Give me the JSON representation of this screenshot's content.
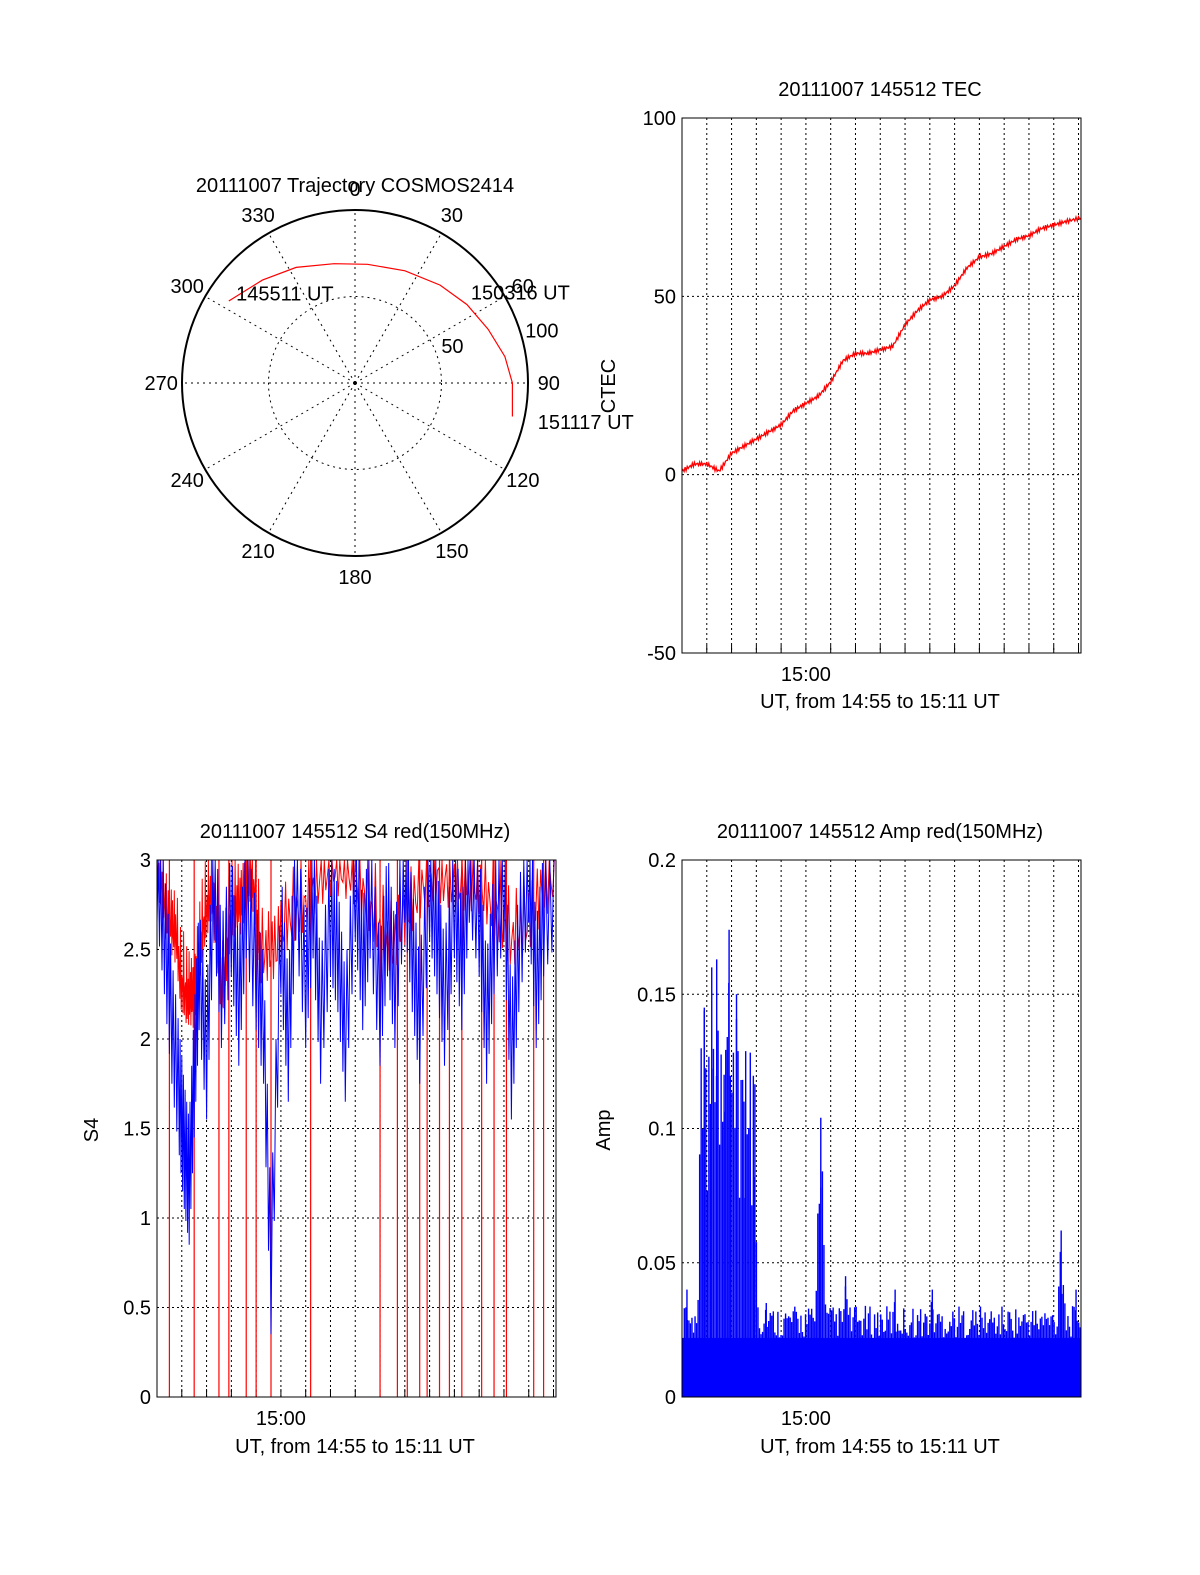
{
  "chart_data": [
    {
      "type": "polar",
      "title": "20111007 Trajectory COSMOS2414",
      "azimuth_labels": [
        "0",
        "30",
        "60",
        "90",
        "120",
        "150",
        "180",
        "210",
        "240",
        "270",
        "300",
        "330"
      ],
      "azimuth_values": [
        0,
        30,
        60,
        90,
        120,
        150,
        180,
        210,
        240,
        270,
        300,
        330
      ],
      "radial_labels": [
        "50",
        "100"
      ],
      "radial_values": [
        50,
        100
      ],
      "rlim": [
        0,
        100
      ],
      "series": [
        {
          "color": "#ff0000",
          "points": [
            {
              "az": 303,
              "r": 87
            },
            {
              "az": 318,
              "r": 80
            },
            {
              "az": 333,
              "r": 75
            },
            {
              "az": 350,
              "r": 70
            },
            {
              "az": 6,
              "r": 69
            },
            {
              "az": 24,
              "r": 71
            },
            {
              "az": 41,
              "r": 75
            },
            {
              "az": 55,
              "r": 79
            },
            {
              "az": 68,
              "r": 83
            },
            {
              "az": 80,
              "r": 88
            },
            {
              "az": 90,
              "r": 91
            },
            {
              "az": 102,
              "r": 93
            }
          ]
        }
      ],
      "annotations": [
        {
          "text": "145511 UT",
          "az": 307,
          "r": 86
        },
        {
          "text": "150316 UT",
          "az": 52,
          "r": 85
        },
        {
          "text": "151117 UT",
          "az": 102,
          "r": 108
        }
      ]
    },
    {
      "type": "line",
      "title": "20111007 145512 TEC",
      "xlabel": "UT, from 14:55 to 15:11 UT",
      "ylabel": "CTEC",
      "xlim": [
        0,
        16.1
      ],
      "ylim": [
        -50,
        100
      ],
      "yticks": [
        -50,
        0,
        50,
        100
      ],
      "xticks": [
        {
          "value": 5,
          "label": "15:00"
        }
      ],
      "grid": true,
      "series": [
        {
          "color": "#ff0000",
          "x": [
            0,
            0.5,
            1.0,
            1.5,
            2.0,
            2.5,
            3.0,
            3.5,
            4.0,
            4.5,
            5.0,
            5.5,
            6.0,
            6.5,
            7.0,
            7.5,
            8.0,
            8.5,
            9.0,
            9.5,
            10.0,
            10.5,
            11.0,
            11.5,
            12.0,
            12.5,
            13.0,
            13.5,
            14.0,
            14.5,
            15.0,
            15.5,
            16.1
          ],
          "y": [
            1,
            3,
            3,
            1,
            6,
            8,
            10,
            12,
            14,
            18,
            20,
            22,
            26,
            32,
            34,
            34,
            35,
            36,
            42,
            46,
            49,
            50,
            53,
            58,
            61,
            62,
            64,
            66,
            67,
            69,
            70,
            71,
            72
          ]
        }
      ]
    },
    {
      "type": "line",
      "title": "20111007 145512 S4 red(150MHz)",
      "xlabel": "UT, from 14:55 to 15:11 UT",
      "ylabel": "S4",
      "xlim": [
        0,
        16.1
      ],
      "ylim": [
        0,
        3
      ],
      "yticks": [
        0,
        0.5,
        1,
        1.5,
        2,
        2.5,
        3
      ],
      "xticks": [
        {
          "value": 5,
          "label": "15:00"
        }
      ],
      "grid": true,
      "series": [
        {
          "color": "#0000ff",
          "x": [
            0,
            0.3,
            0.6,
            0.9,
            1.1,
            1.3,
            1.5,
            1.7,
            2.0,
            2.3,
            2.6,
            3.0,
            3.3,
            3.6,
            4.0,
            4.3,
            4.6,
            5.0,
            5.3,
            5.6,
            6.0,
            6.3,
            6.6,
            7.0,
            7.3,
            7.6,
            8.0,
            8.3,
            8.6,
            9.0,
            9.3,
            9.6,
            10.0,
            10.3,
            10.6,
            11.0,
            11.3,
            11.6,
            12.0,
            12.3,
            12.6,
            13.0,
            13.3,
            13.6,
            14.0,
            14.3,
            14.6,
            15.0,
            15.3,
            15.6,
            16.1
          ],
          "y": [
            2.9,
            2.5,
            2.0,
            1.6,
            1.3,
            1.1,
            1.7,
            2.3,
            1.8,
            2.8,
            2.2,
            2.6,
            2.1,
            2.7,
            2.3,
            2.0,
            0.6,
            2.5,
            1.9,
            2.8,
            2.2,
            2.7,
            2.0,
            2.6,
            2.4,
            1.9,
            2.8,
            2.3,
            2.7,
            2.1,
            2.6,
            2.2,
            2.9,
            2.4,
            2.0,
            2.8,
            2.5,
            2.1,
            2.7,
            2.3,
            2.9,
            2.6,
            2.0,
            2.5,
            2.8,
            1.8,
            2.4,
            2.9,
            2.2,
            2.6,
            2.8
          ]
        },
        {
          "color": "#ff0000",
          "spikes_down": [
            0.5,
            1.5,
            2.5,
            2.9,
            3.6,
            4.0,
            4.6,
            6.2,
            9.0,
            9.7,
            10.1,
            10.6,
            10.9,
            11.4,
            11.8,
            12.3,
            13.1,
            13.6,
            14.1,
            15.2,
            15.6
          ],
          "x": [
            0,
            0.4,
            0.8,
            1.2,
            1.5,
            1.8,
            2.2,
            2.6,
            3.0,
            3.4,
            3.8,
            4.2,
            5.0,
            6.0,
            7.0,
            8.0,
            9.0,
            10.0,
            11.0,
            12.0,
            13.0,
            14.0,
            15.0,
            16.1
          ],
          "y": [
            2.9,
            2.7,
            2.8,
            2.4,
            2.2,
            2.5,
            2.9,
            2.6,
            2.8,
            2.7,
            2.9,
            2.6,
            2.9,
            2.8,
            2.9,
            2.9,
            2.8,
            2.9,
            2.9,
            2.8,
            2.9,
            2.9,
            2.8,
            2.9
          ]
        }
      ]
    },
    {
      "type": "bar",
      "title": "20111007 145512 Amp red(150MHz)",
      "xlabel": "UT, from 14:55 to 15:11 UT",
      "ylabel": "Amp",
      "xlim": [
        0,
        16.1
      ],
      "ylim": [
        0,
        0.2
      ],
      "yticks": [
        0,
        0.05,
        0.1,
        0.15,
        0.2
      ],
      "ytick_labels": [
        "0",
        "0.05",
        "0.1",
        "0.15",
        "0.2"
      ],
      "xticks": [
        {
          "value": 5,
          "label": "15:00"
        }
      ],
      "grid": true,
      "series": [
        {
          "color": "#0000ff",
          "peaks": [
            {
              "x": 0.2,
              "y": 0.04
            },
            {
              "x": 0.9,
              "y": 0.145
            },
            {
              "x": 1.2,
              "y": 0.16
            },
            {
              "x": 1.4,
              "y": 0.163
            },
            {
              "x": 1.7,
              "y": 0.12
            },
            {
              "x": 1.9,
              "y": 0.174
            },
            {
              "x": 2.2,
              "y": 0.15
            },
            {
              "x": 2.5,
              "y": 0.11
            },
            {
              "x": 2.9,
              "y": 0.082
            },
            {
              "x": 3.4,
              "y": 0.035
            },
            {
              "x": 5.6,
              "y": 0.104
            },
            {
              "x": 6.6,
              "y": 0.045
            },
            {
              "x": 8.6,
              "y": 0.04
            },
            {
              "x": 10.1,
              "y": 0.04
            },
            {
              "x": 15.3,
              "y": 0.062
            },
            {
              "x": 15.9,
              "y": 0.04
            }
          ],
          "base_level": 0.022
        }
      ]
    }
  ]
}
